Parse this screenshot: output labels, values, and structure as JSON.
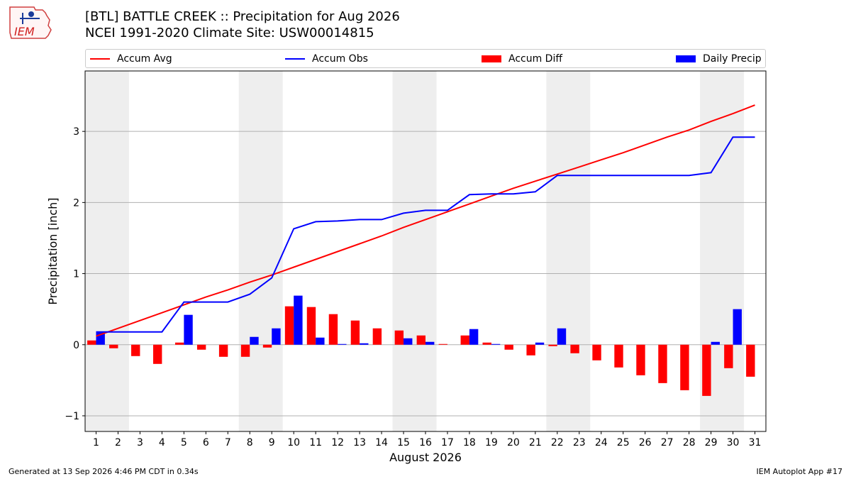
{
  "title": {
    "line1": "[BTL] BATTLE CREEK :: Precipitation for Aug 2026",
    "line2": "NCEI 1991-2020 Climate Site: USW00014815"
  },
  "logo": {
    "text": "IEM"
  },
  "legend": {
    "accum_avg": "Accum Avg",
    "accum_obs": "Accum Obs",
    "accum_diff": "Accum Diff",
    "daily_precip": "Daily Precip"
  },
  "footer": {
    "left": "Generated at 13 Sep 2026 4:46 PM CDT in 0.34s",
    "right": "IEM Autoplot App #17"
  },
  "colors": {
    "avg": "#ff0000",
    "obs": "#0000ff",
    "diff": "#ff0000",
    "daily": "#0000ff",
    "weekend": "#eeeeee",
    "grid": "#b0b0b0"
  },
  "chart_data": {
    "type": "bar",
    "xlabel": "August 2026",
    "ylabel": "Precipitation [inch]",
    "ylim": [
      -1.22,
      3.85
    ],
    "xlim": [
      0.5,
      31.5
    ],
    "yticks": [
      -1,
      0,
      1,
      2,
      3
    ],
    "ytick_labels": [
      "−1",
      "0",
      "1",
      "2",
      "3"
    ],
    "grid": true,
    "legend_position": "top",
    "weekend_shading": [
      [
        0.5,
        2.5
      ],
      [
        7.5,
        9.5
      ],
      [
        14.5,
        16.5
      ],
      [
        21.5,
        23.5
      ],
      [
        28.5,
        30.5
      ]
    ],
    "days": [
      1,
      2,
      3,
      4,
      5,
      6,
      7,
      8,
      9,
      10,
      11,
      12,
      13,
      14,
      15,
      16,
      17,
      18,
      19,
      20,
      21,
      22,
      23,
      24,
      25,
      26,
      27,
      28,
      29,
      30,
      31
    ],
    "series": [
      {
        "name": "Accum Avg",
        "type": "line",
        "values": [
          0.12,
          0.23,
          0.34,
          0.45,
          0.56,
          0.67,
          0.77,
          0.88,
          0.98,
          1.09,
          1.2,
          1.31,
          1.42,
          1.53,
          1.65,
          1.76,
          1.87,
          1.98,
          2.09,
          2.2,
          2.3,
          2.4,
          2.5,
          2.6,
          2.7,
          2.81,
          2.92,
          3.02,
          3.14,
          3.25,
          3.37
        ]
      },
      {
        "name": "Accum Obs",
        "type": "line",
        "values": [
          0.18,
          0.18,
          0.18,
          0.18,
          0.6,
          0.6,
          0.6,
          0.71,
          0.94,
          1.63,
          1.73,
          1.74,
          1.76,
          1.76,
          1.85,
          1.89,
          1.89,
          2.11,
          2.12,
          2.12,
          2.15,
          2.38,
          2.38,
          2.38,
          2.38,
          2.38,
          2.38,
          2.38,
          2.42,
          2.92,
          2.92
        ]
      },
      {
        "name": "Accum Diff",
        "type": "bar",
        "values": [
          0.06,
          -0.05,
          -0.16,
          -0.27,
          0.03,
          -0.07,
          -0.17,
          -0.17,
          -0.04,
          0.54,
          0.53,
          0.43,
          0.34,
          0.23,
          0.2,
          0.13,
          0.01,
          0.13,
          0.03,
          -0.07,
          -0.15,
          -0.02,
          -0.12,
          -0.22,
          -0.32,
          -0.43,
          -0.54,
          -0.64,
          -0.72,
          -0.33,
          -0.45
        ]
      },
      {
        "name": "Daily Precip",
        "type": "bar",
        "values": [
          0.18,
          0,
          0,
          0,
          0.42,
          0,
          0,
          0.11,
          0.23,
          0.69,
          0.1,
          0.01,
          0.02,
          0,
          0.09,
          0.04,
          0,
          0.22,
          0.01,
          0,
          0.03,
          0.23,
          0,
          0,
          0,
          0,
          0,
          0,
          0.04,
          0.5,
          0
        ]
      }
    ]
  }
}
